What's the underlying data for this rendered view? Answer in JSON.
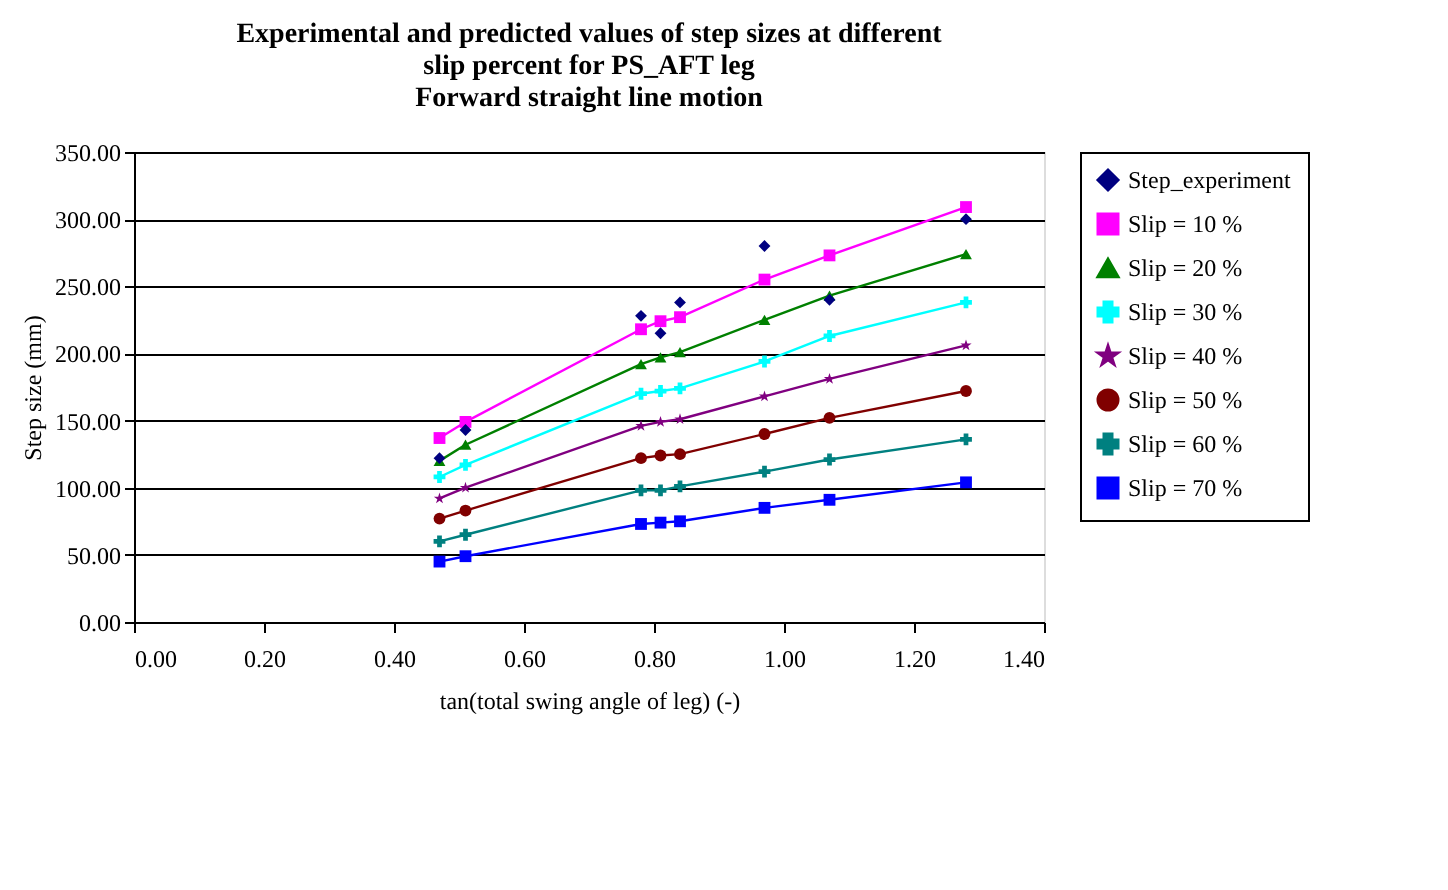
{
  "chart_data": {
    "type": "line",
    "title": "Experimental and predicted values of step sizes at different\nslip percent for PS_AFT leg\nForward straight line motion",
    "xlabel": "tan(total swing angle of leg) (-)",
    "ylabel": "Step size (mm)",
    "x": [
      0.47,
      0.51,
      0.78,
      0.81,
      0.84,
      0.97,
      1.07,
      1.28
    ],
    "xlim": [
      0,
      1.4
    ],
    "xticks": [
      {
        "value": 0,
        "label": "0.00"
      },
      {
        "value": 0.2,
        "label": "0.20"
      },
      {
        "value": 0.4,
        "label": "0.40"
      },
      {
        "value": 0.6,
        "label": "0.60"
      },
      {
        "value": 0.8,
        "label": "0.80"
      },
      {
        "value": 1.0,
        "label": "1.00"
      },
      {
        "value": 1.2,
        "label": "1.20"
      },
      {
        "value": 1.4,
        "label": "1.40"
      }
    ],
    "ylim": [
      0,
      350
    ],
    "yticks": [
      {
        "value": 0,
        "label": "0.00"
      },
      {
        "value": 50,
        "label": "50.00"
      },
      {
        "value": 100,
        "label": "100.00"
      },
      {
        "value": 150,
        "label": "150.00"
      },
      {
        "value": 200,
        "label": "200.00"
      },
      {
        "value": 250,
        "label": "250.00"
      },
      {
        "value": 300,
        "label": "300.00"
      },
      {
        "value": 350,
        "label": "350.00"
      }
    ],
    "grid": "y",
    "legend": "right",
    "series": [
      {
        "name": "Step_experiment",
        "type": "scatter",
        "marker": "diamond",
        "color": "#000080",
        "values": [
          122,
          143,
          228,
          215,
          238,
          280,
          240,
          300
        ]
      },
      {
        "name": "Slip = 10 %",
        "marker": "square",
        "color": "#ff00ff",
        "values": [
          137,
          149,
          218,
          224,
          227,
          255,
          273,
          309
        ]
      },
      {
        "name": "Slip = 20 %",
        "marker": "triangle",
        "color": "#008000",
        "values": [
          120,
          132,
          192,
          197,
          201,
          225,
          243,
          274
        ]
      },
      {
        "name": "Slip = 30 %",
        "marker": "cross",
        "color": "#00ffff",
        "values": [
          108,
          117,
          170,
          172,
          174,
          194,
          213,
          238
        ]
      },
      {
        "name": "Slip = 40 %",
        "marker": "star",
        "color": "#800080",
        "values": [
          92,
          100,
          146,
          149,
          151,
          168,
          181,
          206
        ]
      },
      {
        "name": "Slip = 50 %",
        "marker": "circle",
        "color": "#800000",
        "values": [
          77,
          83,
          122,
          124,
          125,
          140,
          152,
          172
        ]
      },
      {
        "name": "Slip = 60 %",
        "marker": "cross",
        "color": "#008080",
        "values": [
          60,
          65,
          98,
          98,
          101,
          112,
          121,
          136
        ]
      },
      {
        "name": "Slip = 70 %",
        "marker": "square",
        "color": "#0000ff",
        "values": [
          45,
          49,
          73,
          74,
          75,
          85,
          91,
          104
        ]
      }
    ]
  }
}
